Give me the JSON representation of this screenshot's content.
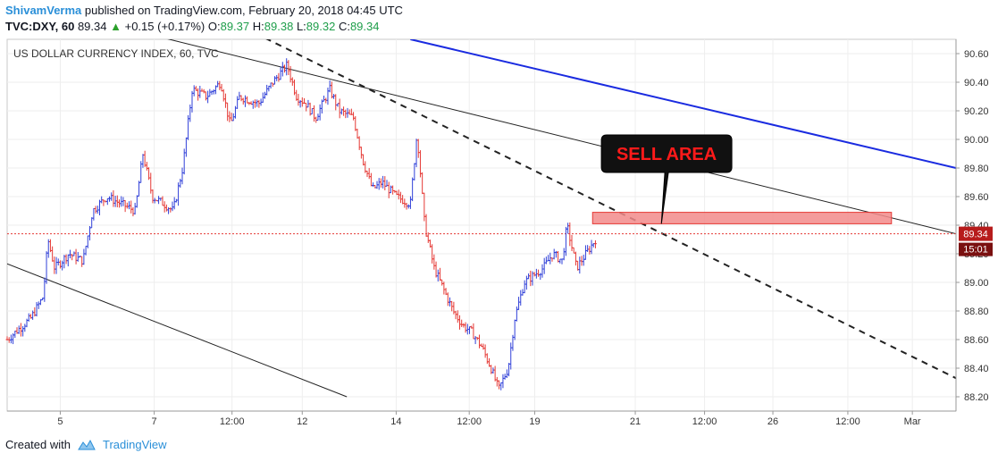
{
  "header": {
    "author": "ShivamVerma",
    "published_text": "published on TradingView.com, February 20, 2018 04:45 UTC",
    "symbol": "TVC:DXY, 60",
    "last": "89.34",
    "change_arrow": "▲",
    "change": "+0.15 (+0.17%)",
    "o_label": "O:",
    "o_value": "89.37",
    "h_label": "H:",
    "h_value": "89.38",
    "l_label": "L:",
    "l_value": "89.32",
    "c_label": "C:",
    "c_value": "89.34"
  },
  "footer": {
    "created_with": "Created with",
    "brand": "TradingView",
    "logo_icon": "tradingview-cloud-icon"
  },
  "chart_data": {
    "type": "candlestick",
    "title": "US DOLLAR CURRENCY INDEX, 60, TVC",
    "ylim": [
      88.1,
      90.7
    ],
    "y_ticks": [
      "90.60",
      "90.40",
      "90.20",
      "90.00",
      "89.80",
      "89.60",
      "89.40",
      "89.20",
      "89.00",
      "88.80",
      "88.60",
      "88.40",
      "88.20"
    ],
    "x_ticks": [
      "5",
      "7",
      "12:00",
      "12",
      "14",
      "12:00",
      "19",
      "21",
      "12:00",
      "26",
      "12:00",
      "Mar"
    ],
    "x_span": [
      0,
      100
    ],
    "x_tick_positions": [
      5.6,
      15.5,
      23.7,
      31.1,
      41.0,
      48.7,
      55.6,
      66.2,
      73.5,
      80.7,
      88.6,
      95.4
    ],
    "price_path": [
      [
        0.0,
        88.6
      ],
      [
        2.5,
        88.75
      ],
      [
        3.8,
        88.9
      ],
      [
        4.3,
        89.3
      ],
      [
        5.0,
        89.1
      ],
      [
        6.5,
        89.2
      ],
      [
        8.0,
        89.15
      ],
      [
        9.0,
        89.5
      ],
      [
        10.5,
        89.6
      ],
      [
        12.0,
        89.55
      ],
      [
        13.5,
        89.5
      ],
      [
        14.3,
        89.9
      ],
      [
        15.3,
        89.6
      ],
      [
        16.5,
        89.55
      ],
      [
        17.5,
        89.5
      ],
      [
        18.5,
        89.8
      ],
      [
        19.5,
        90.35
      ],
      [
        21.0,
        90.3
      ],
      [
        22.5,
        90.4
      ],
      [
        23.5,
        90.1
      ],
      [
        24.5,
        90.3
      ],
      [
        26.5,
        90.25
      ],
      [
        28.0,
        90.4
      ],
      [
        29.5,
        90.52
      ],
      [
        30.5,
        90.3
      ],
      [
        31.5,
        90.25
      ],
      [
        32.5,
        90.15
      ],
      [
        34.0,
        90.35
      ],
      [
        35.0,
        90.2
      ],
      [
        36.5,
        90.15
      ],
      [
        37.5,
        89.85
      ],
      [
        38.5,
        89.65
      ],
      [
        39.5,
        89.7
      ],
      [
        41.0,
        89.6
      ],
      [
        42.5,
        89.55
      ],
      [
        43.2,
        90.05
      ],
      [
        44.0,
        89.4
      ],
      [
        45.0,
        89.1
      ],
      [
        46.0,
        88.95
      ],
      [
        47.0,
        88.8
      ],
      [
        48.0,
        88.7
      ],
      [
        49.0,
        88.65
      ],
      [
        50.0,
        88.55
      ],
      [
        51.0,
        88.4
      ],
      [
        51.8,
        88.25
      ],
      [
        52.8,
        88.4
      ],
      [
        53.5,
        88.75
      ],
      [
        54.5,
        89.0
      ],
      [
        55.5,
        89.05
      ],
      [
        56.5,
        89.1
      ],
      [
        57.5,
        89.2
      ],
      [
        58.5,
        89.15
      ],
      [
        59.0,
        89.4
      ],
      [
        60.0,
        89.1
      ],
      [
        61.0,
        89.2
      ],
      [
        62.0,
        89.3
      ]
    ],
    "last_price": 89.34,
    "last_price_label": "89.34",
    "countdown_label": "15:01",
    "trendlines": [
      {
        "name": "upper-channel-line",
        "style": "solid-black",
        "points": [
          [
            0.0,
            90.98
          ],
          [
            100.0,
            89.34
          ]
        ]
      },
      {
        "name": "lower-channel-line",
        "style": "solid-black",
        "points": [
          [
            0.0,
            89.13
          ],
          [
            35.8,
            88.2
          ]
        ]
      },
      {
        "name": "resistance-trendline",
        "style": "dashed-black",
        "points": [
          [
            25.0,
            90.78
          ],
          [
            100.0,
            88.33
          ]
        ]
      },
      {
        "name": "blue-channel-line",
        "style": "solid-blue",
        "points": [
          [
            42.5,
            90.7
          ],
          [
            100.0,
            89.8
          ]
        ]
      }
    ],
    "sell_zone": {
      "x": [
        61.7,
        93.2
      ],
      "y": [
        89.41,
        89.49
      ]
    },
    "annotation": {
      "text": "SELL AREA",
      "x": 69.5,
      "y": 89.9
    },
    "colors": {
      "bull": "#3040d8",
      "bear": "#e53935",
      "last_line": "#e53935",
      "sell_zone": "#f28b8b",
      "blue_line": "#1a2be0",
      "price_tag": "#b71c1c"
    }
  }
}
